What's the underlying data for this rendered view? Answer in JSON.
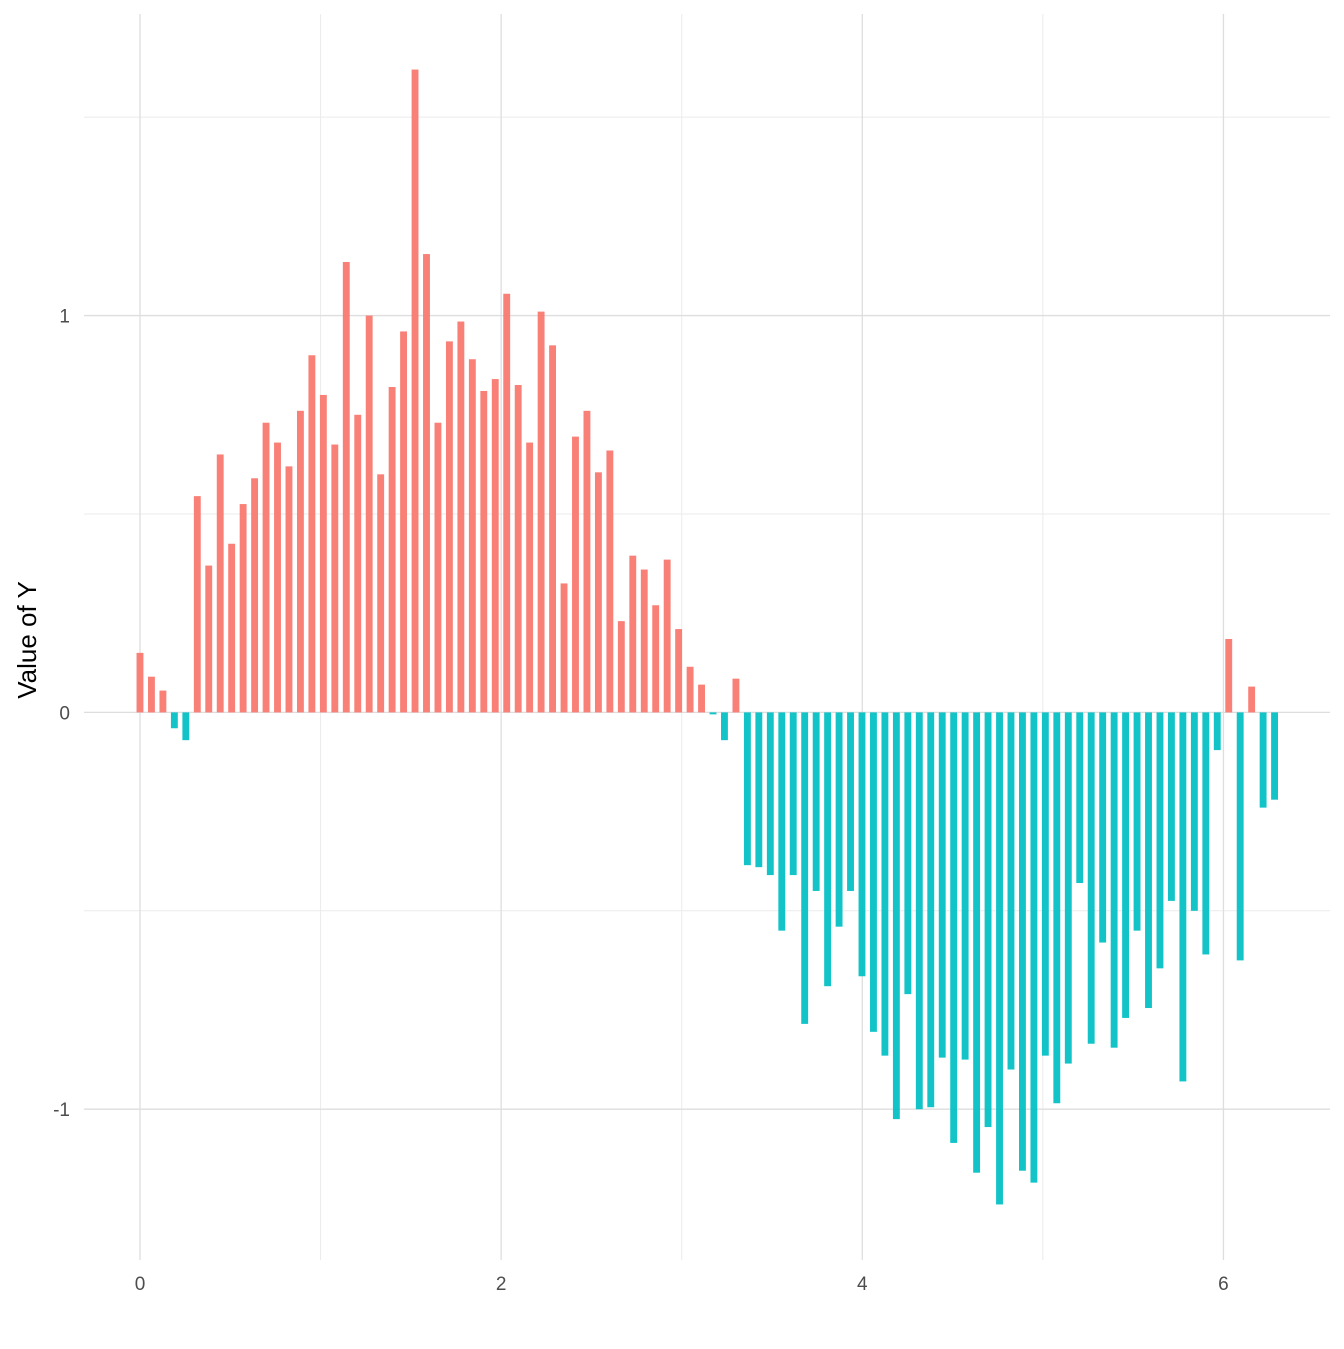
{
  "chart_data": {
    "type": "bar",
    "title": "",
    "xlabel": "",
    "ylabel": "Value of Y",
    "xlim": [
      -0.31,
      6.59
    ],
    "ylim": [
      -1.38,
      1.76
    ],
    "x_ticks": [
      0,
      2,
      4,
      6
    ],
    "y_ticks": [
      -1,
      0,
      1
    ],
    "x_tick_labels": [
      "0",
      "2",
      "4",
      "6"
    ],
    "y_tick_labels": [
      "-1",
      "0",
      "1"
    ],
    "grid": true,
    "legend": "none",
    "colors": {
      "positive": "#F8766D",
      "negative": "#00BFC4",
      "grid": "#dedede",
      "text": "#4d4d4d"
    },
    "x": [
      0.0,
      0.0635,
      0.127,
      0.1904,
      0.2539,
      0.3174,
      0.3808,
      0.4443,
      0.5077,
      0.5712,
      0.6347,
      0.6981,
      0.7616,
      0.8251,
      0.8885,
      0.952,
      1.0155,
      1.0789,
      1.1424,
      1.2059,
      1.2693,
      1.3328,
      1.3963,
      1.4597,
      1.5232,
      1.5866,
      1.6501,
      1.7136,
      1.777,
      1.8405,
      1.904,
      1.9674,
      2.0309,
      2.0944,
      2.1578,
      2.2213,
      2.2848,
      2.3482,
      2.4117,
      2.4752,
      2.5386,
      2.6021,
      2.6656,
      2.729,
      2.7925,
      2.8559,
      2.9194,
      2.9829,
      3.0463,
      3.1098,
      3.1733,
      3.2367,
      3.3002,
      3.3637,
      3.4271,
      3.4906,
      3.5541,
      3.6175,
      3.681,
      3.7445,
      3.8079,
      3.8714,
      3.9348,
      3.9983,
      4.0618,
      4.1252,
      4.1887,
      4.2522,
      4.3156,
      4.3791,
      4.4426,
      4.506,
      4.5695,
      4.633,
      4.6964,
      4.7599,
      4.8233,
      4.8868,
      4.9503,
      5.0137,
      5.0772,
      5.1407,
      5.2041,
      5.2676,
      5.3311,
      5.3945,
      5.458,
      5.5215,
      5.5849,
      5.6484,
      5.7119,
      5.7753,
      5.8388,
      5.9023,
      5.9657,
      6.0292,
      6.0926,
      6.1561,
      6.2196,
      6.283
    ],
    "values": [
      0.15,
      0.09,
      0.055,
      -0.04,
      -0.07,
      0.545,
      0.37,
      0.65,
      0.425,
      0.525,
      0.59,
      0.73,
      0.68,
      0.62,
      0.76,
      0.9,
      0.8,
      0.675,
      1.135,
      0.75,
      1.0,
      0.6,
      0.82,
      0.96,
      1.62,
      1.155,
      0.73,
      0.935,
      0.985,
      0.89,
      0.81,
      0.84,
      1.055,
      0.825,
      0.68,
      1.01,
      0.925,
      0.325,
      0.695,
      0.76,
      0.605,
      0.66,
      0.23,
      0.395,
      0.36,
      0.27,
      0.385,
      0.21,
      0.115,
      0.07,
      -0.005,
      -0.07,
      0.085,
      -0.385,
      -0.39,
      -0.41,
      -0.55,
      -0.41,
      -0.785,
      -0.45,
      -0.69,
      -0.54,
      -0.45,
      -0.665,
      -0.805,
      -0.865,
      -1.025,
      -0.71,
      -1.0,
      -0.995,
      -0.87,
      -1.085,
      -0.875,
      -1.16,
      -1.045,
      -1.24,
      -0.9,
      -1.155,
      -1.185,
      -0.865,
      -0.985,
      -0.885,
      -0.43,
      -0.835,
      -0.58,
      -0.845,
      -0.77,
      -0.55,
      -0.745,
      -0.645,
      -0.475,
      -0.93,
      -0.5,
      -0.61,
      -0.095,
      0.185,
      -0.625,
      0.065,
      -0.24,
      -0.22
    ]
  }
}
